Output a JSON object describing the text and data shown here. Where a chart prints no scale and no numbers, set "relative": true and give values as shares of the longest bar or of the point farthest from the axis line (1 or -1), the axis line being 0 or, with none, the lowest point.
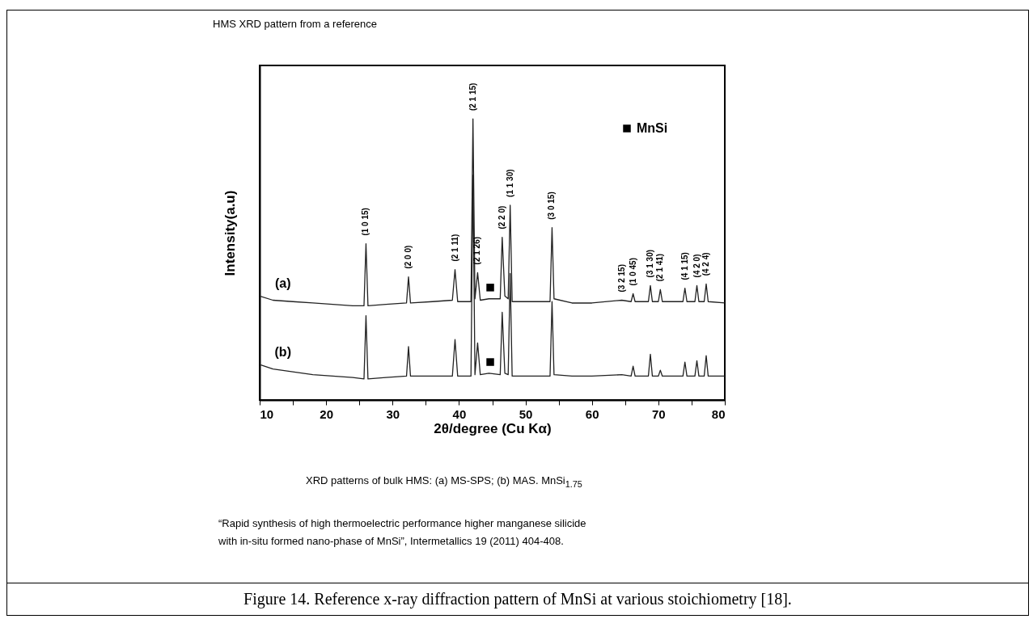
{
  "chart_data": {
    "type": "line",
    "title": "HMS XRD pattern from a reference",
    "xlabel": "2θ/degree (Cu Kα)",
    "ylabel": "Intensity(a.u)",
    "relative": true,
    "xlim": [
      10,
      80
    ],
    "xticks": [
      10,
      {
        "value": 15,
        "label": null
      },
      20,
      {
        "value": 25,
        "label": null
      },
      30,
      {
        "value": 35,
        "label": null
      },
      40,
      {
        "value": 45,
        "label": null
      },
      50,
      {
        "value": 55,
        "label": null
      },
      60,
      {
        "value": 65,
        "label": null
      },
      70,
      {
        "value": 75,
        "label": null
      },
      80
    ],
    "grid": false,
    "legend": "top right",
    "series": [
      {
        "name": "(a)",
        "color": "#222222",
        "x": [
          10,
          12,
          15,
          18,
          21,
          24,
          25.7,
          26,
          26.3,
          29,
          32.1,
          32.4,
          32.7,
          36,
          39.0,
          39.4,
          39.8,
          41.8,
          42.1,
          42.4,
          42.8,
          43.2,
          44.5,
          46.2,
          46.5,
          46.9,
          47.4,
          47.7,
          48.0,
          51,
          53.7,
          54.0,
          54.3,
          57,
          60,
          64.5,
          65.9,
          66.2,
          66.5,
          68.5,
          68.8,
          69.1,
          70.0,
          70.3,
          70.6,
          73.7,
          74.0,
          74.3,
          75.5,
          75.8,
          76.1,
          76.9,
          77.2,
          77.5,
          80
        ],
        "values": [
          0.37,
          0.355,
          0.35,
          0.345,
          0.34,
          0.335,
          0.335,
          0.556,
          0.335,
          0.34,
          0.345,
          0.438,
          0.345,
          0.35,
          0.355,
          0.464,
          0.35,
          0.35,
          1.0,
          0.36,
          0.453,
          0.355,
          0.36,
          0.36,
          0.579,
          0.37,
          0.36,
          0.693,
          0.35,
          0.35,
          0.35,
          0.613,
          0.36,
          0.345,
          0.345,
          0.355,
          0.35,
          0.378,
          0.35,
          0.35,
          0.407,
          0.35,
          0.35,
          0.393,
          0.35,
          0.35,
          0.398,
          0.35,
          0.35,
          0.407,
          0.35,
          0.35,
          0.413,
          0.35,
          0.345
        ]
      },
      {
        "name": "(b)",
        "color": "#222222",
        "x": [
          10,
          12,
          15,
          18,
          21,
          24,
          25.7,
          26,
          26.3,
          29,
          32.1,
          32.4,
          32.7,
          36,
          39.0,
          39.4,
          39.8,
          41.8,
          42.1,
          42.4,
          42.8,
          43.2,
          44.5,
          46.2,
          46.5,
          46.9,
          47.4,
          47.7,
          48.0,
          51,
          53.7,
          54.0,
          54.3,
          57,
          60,
          64.5,
          65.9,
          66.2,
          66.5,
          68.5,
          68.8,
          69.1,
          70.0,
          70.3,
          70.6,
          73.7,
          74.0,
          74.3,
          75.5,
          75.8,
          76.1,
          76.9,
          77.2,
          77.5,
          80
        ],
        "values": [
          0.126,
          0.11,
          0.1,
          0.09,
          0.085,
          0.08,
          0.075,
          0.3,
          0.075,
          0.08,
          0.085,
          0.19,
          0.085,
          0.085,
          0.085,
          0.215,
          0.085,
          0.085,
          0.8,
          0.09,
          0.203,
          0.09,
          0.095,
          0.09,
          0.312,
          0.095,
          0.09,
          0.45,
          0.085,
          0.085,
          0.085,
          0.35,
          0.09,
          0.085,
          0.085,
          0.09,
          0.085,
          0.12,
          0.085,
          0.085,
          0.163,
          0.085,
          0.085,
          0.106,
          0.085,
          0.085,
          0.135,
          0.085,
          0.085,
          0.14,
          0.085,
          0.085,
          0.158,
          0.085,
          0.085
        ]
      },
      {
        "name": "MnSi",
        "type": "scatter",
        "marker": "square",
        "color": "#000000",
        "x": [
          44.7,
          44.7
        ],
        "values": [
          0.4,
          0.135
        ]
      }
    ],
    "annotations": [
      {
        "text": "(1 0 15)",
        "x": 26,
        "y": 0.556
      },
      {
        "text": "(2 0 0)",
        "x": 32.4,
        "y": 0.438
      },
      {
        "text": "(2 1 11)",
        "x": 39.4,
        "y": 0.464
      },
      {
        "text": "(2 1 15)",
        "x": 42.1,
        "y": 1.0
      },
      {
        "text": "(2 1 26)",
        "x": 42.8,
        "y": 0.453
      },
      {
        "text": "(2 2 0)",
        "x": 46.5,
        "y": 0.579
      },
      {
        "text": "(1 1 30)",
        "x": 47.7,
        "y": 0.693
      },
      {
        "text": "(3 0 15)",
        "x": 54,
        "y": 0.613
      },
      {
        "text": "(3 2 15)",
        "x": 64.5,
        "y": 0.355
      },
      {
        "text": "(1 0 45)",
        "x": 66.2,
        "y": 0.378
      },
      {
        "text": "(3 1 30)",
        "x": 68.8,
        "y": 0.407
      },
      {
        "text": "(2 1 41)",
        "x": 70.3,
        "y": 0.393
      },
      {
        "text": "(4 1 15)",
        "x": 74,
        "y": 0.398
      },
      {
        "text": "(4 2 0)",
        "x": 75.8,
        "y": 0.407
      },
      {
        "text": "(4 2 4)",
        "x": 77.2,
        "y": 0.413
      },
      "XRD patterns of bulk HMS: (a) MS-SPS; (b) MAS.  MnSi$_{1.75}$",
      "“Rapid synthesis of high thermoelectric performance higher manganese silicide with in-situ formed nano-phase of MnSi”, Intermetallics 19 (2011) 404-408.",
      "Figure 14. Reference x-ray diffraction pattern of MnSi at various stoichiometry [18]."
    ]
  }
}
